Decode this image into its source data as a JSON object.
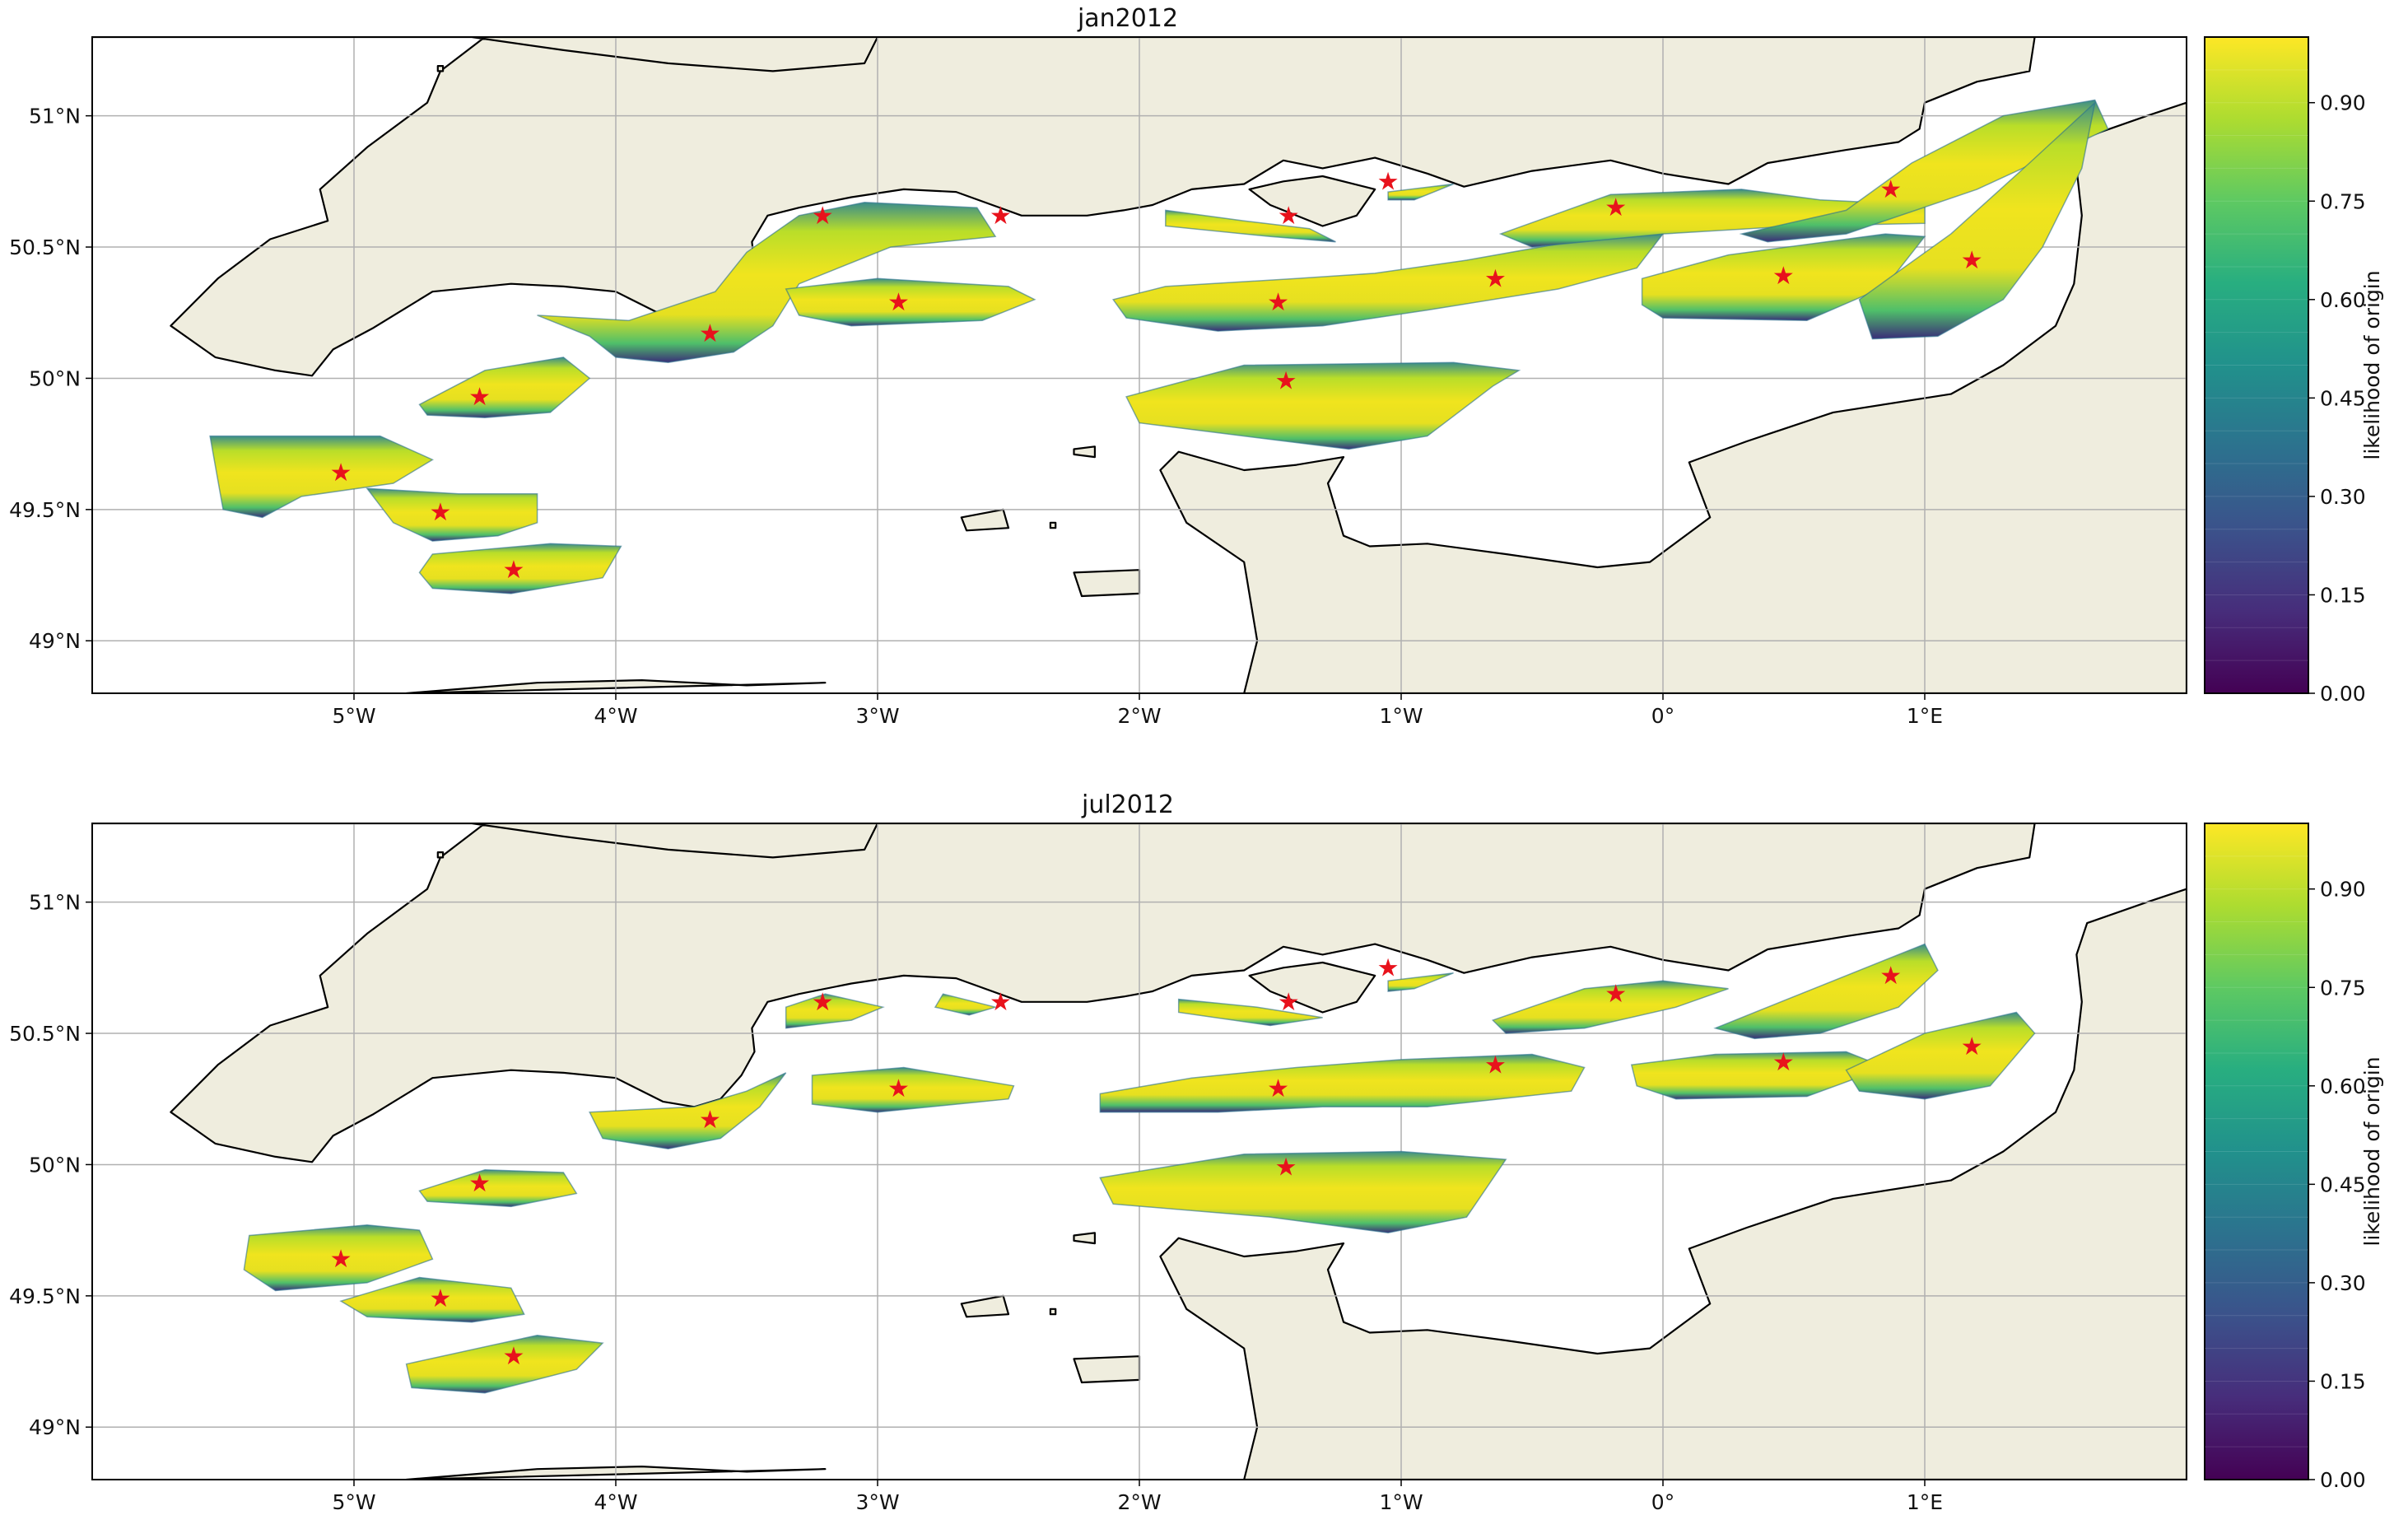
{
  "maps": [
    {
      "title": "jan2012",
      "colorbar_label": "likelihood of origin",
      "colorbar_ticks": [
        "0.00",
        "0.15",
        "0.30",
        "0.45",
        "0.60",
        "0.75",
        "0.90"
      ],
      "lon_ticks": [
        "5°W",
        "4°W",
        "3°W",
        "2°W",
        "1°W",
        "0°",
        "1°E"
      ],
      "lat_ticks": [
        "51°N",
        "50.5°N",
        "50°N",
        "49.5°N",
        "49°N"
      ]
    },
    {
      "title": "jul2012",
      "colorbar_label": "likelihood of origin",
      "colorbar_ticks": [
        "0.00",
        "0.15",
        "0.30",
        "0.45",
        "0.60",
        "0.75",
        "0.90"
      ],
      "lon_ticks": [
        "5°W",
        "4°W",
        "3°W",
        "2°W",
        "1°W",
        "0°",
        "1°E"
      ],
      "lat_ticks": [
        "51°N",
        "50.5°N",
        "50°N",
        "49.5°N",
        "49°N"
      ]
    }
  ],
  "map_extent": {
    "lon_min": -6.0,
    "lon_max": 2.0,
    "lat_min": 48.8,
    "lat_max": 51.3
  },
  "colormap": "viridis",
  "colorbar_range": [
    0.0,
    1.0
  ],
  "colors": {
    "land": "#efedde",
    "sea": "#ffffff",
    "coast": "#000000",
    "grid": "#b0b0b0",
    "marker": "#e8121c",
    "cmap_low": "#440154",
    "cmap_high": "#fde725"
  },
  "marker_symbol": "★",
  "release_sites": [
    {
      "lon": -5.05,
      "lat": 49.64
    },
    {
      "lon": -4.67,
      "lat": 49.49
    },
    {
      "lon": -4.39,
      "lat": 49.27
    },
    {
      "lon": -4.52,
      "lat": 49.93
    },
    {
      "lon": -3.64,
      "lat": 50.17
    },
    {
      "lon": -3.21,
      "lat": 50.62
    },
    {
      "lon": -2.92,
      "lat": 50.29
    },
    {
      "lon": -2.53,
      "lat": 50.62
    },
    {
      "lon": -1.47,
      "lat": 50.29
    },
    {
      "lon": -1.43,
      "lat": 50.62
    },
    {
      "lon": -1.05,
      "lat": 50.75
    },
    {
      "lon": -1.44,
      "lat": 49.99
    },
    {
      "lon": -0.64,
      "lat": 50.38
    },
    {
      "lon": -0.18,
      "lat": 50.65
    },
    {
      "lon": 0.46,
      "lat": 50.39
    },
    {
      "lon": 0.87,
      "lat": 50.72
    },
    {
      "lon": 1.18,
      "lat": 50.45
    }
  ]
}
